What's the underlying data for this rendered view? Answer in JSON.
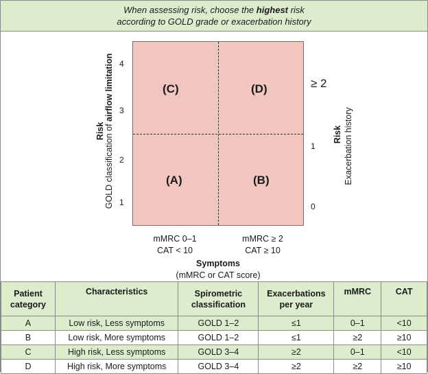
{
  "header": {
    "line1_pre": "When assessing risk, choose the ",
    "line1_bold": "highest",
    "line1_post": " risk",
    "line2": "according to GOLD grade or exacerbation history"
  },
  "diagram": {
    "quadrants": {
      "c": "(C)",
      "d": "(D)",
      "a": "(A)",
      "b": "(B)"
    },
    "left_ticks": [
      "4",
      "3",
      "2",
      "1"
    ],
    "right_ticks": [
      "≥ 2",
      "1",
      "0"
    ],
    "left_axis_title": "Risk",
    "left_axis_sub_pre": "GOLD classification of ",
    "left_axis_sub_bold": "airflow limitation",
    "right_axis_title": "Risk",
    "right_axis_sub": "Exacerbation history",
    "bottom_left": {
      "line1": "mMRC 0–1",
      "line2": "CAT < 10"
    },
    "bottom_right": {
      "line1": "mMRC ≥ 2",
      "line2": "CAT  ≥ 10"
    },
    "x_axis_title": "Symptoms",
    "x_axis_sub": "(mMRC or CAT score)"
  },
  "table": {
    "headers": [
      "Patient category",
      "Characteristics",
      "Spirometric classification",
      "Exacerbations per year",
      "mMRC",
      "CAT"
    ],
    "rows": [
      [
        "A",
        "Low risk, Less symptoms",
        "GOLD 1–2",
        "≤1",
        "0–1",
        "<10"
      ],
      [
        "B",
        "Low risk, More symptoms",
        "GOLD 1–2",
        "≤1",
        "≥2",
        "≥10"
      ],
      [
        "C",
        "High risk, Less symptoms",
        "GOLD 3–4",
        "≥2",
        "0–1",
        "<10"
      ],
      [
        "D",
        "High risk, More symptoms",
        "GOLD 3–4",
        "≥2",
        "≥2",
        "≥10"
      ]
    ]
  }
}
